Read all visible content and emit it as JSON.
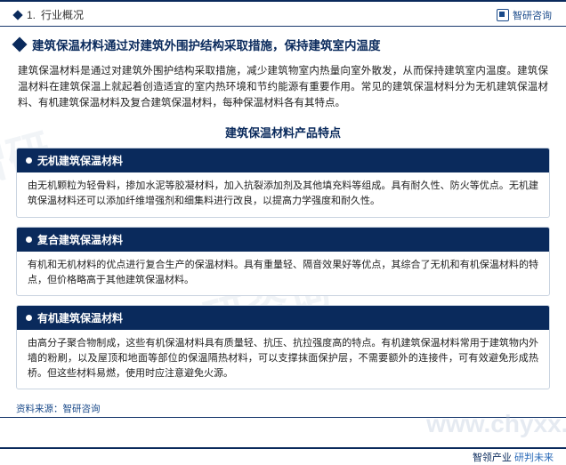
{
  "colors": {
    "primary": "#0a2a5c",
    "accent": "#2a6ab8",
    "border": "#c9d3e0",
    "text": "#222222",
    "background": "#ffffff"
  },
  "header": {
    "section_number": "1.",
    "section_title": "行业概况",
    "brand": "智研咨询"
  },
  "title": "建筑保温材料通过对建筑外围护结构采取措施，保持建筑室内温度",
  "intro": "建筑保温材料是通过对建筑外围护结构采取措施，减少建筑物室内热量向室外散发，从而保持建筑室内温度。建筑保温材料在建筑保温上就起着创造适宜的室内热环境和节约能源有重要作用。常见的建筑保温材料分为无机建筑保温材料、有机建筑保温材料及复合建筑保温材料，每种保温材料各有其特点。",
  "center_heading": "建筑保温材料产品特点",
  "cards": [
    {
      "title": "无机建筑保温材料",
      "body": "由无机颗粒为轻骨料，掺加水泥等胶凝材料，加入抗裂添加剂及其他填充料等组成。具有耐久性、防火等优点。无机建筑保温材料还可以添加纤维增强剂和细集料进行改良，以提高力学强度和耐久性。"
    },
    {
      "title": "复合建筑保温材料",
      "body": "有机和无机材料的优点进行复合生产的保温材料。具有重量轻、隔音效果好等优点，其综合了无机和有机保温材料的特点，但价格略高于其他建筑保温材料。"
    },
    {
      "title": "有机建筑保温材料",
      "body": "由高分子聚合物制成，这些有机保温材料具有质量轻、抗压、抗拉强度高的特点。有机建筑保温材料常用于建筑物内外墙的粉刷，以及屋顶和地面等部位的保温隔热材料，可以支撑抹面保护层，不需要额外的连接件，可有效避免形成热桥。但这些材料易燃，使用时应注意避免火源。"
    }
  ],
  "source_label": "资料来源：",
  "source_value": "智研咨询",
  "footer": {
    "left": "智领产业",
    "right": "研判未来"
  },
  "watermark_domain": "www.chyxx.com"
}
